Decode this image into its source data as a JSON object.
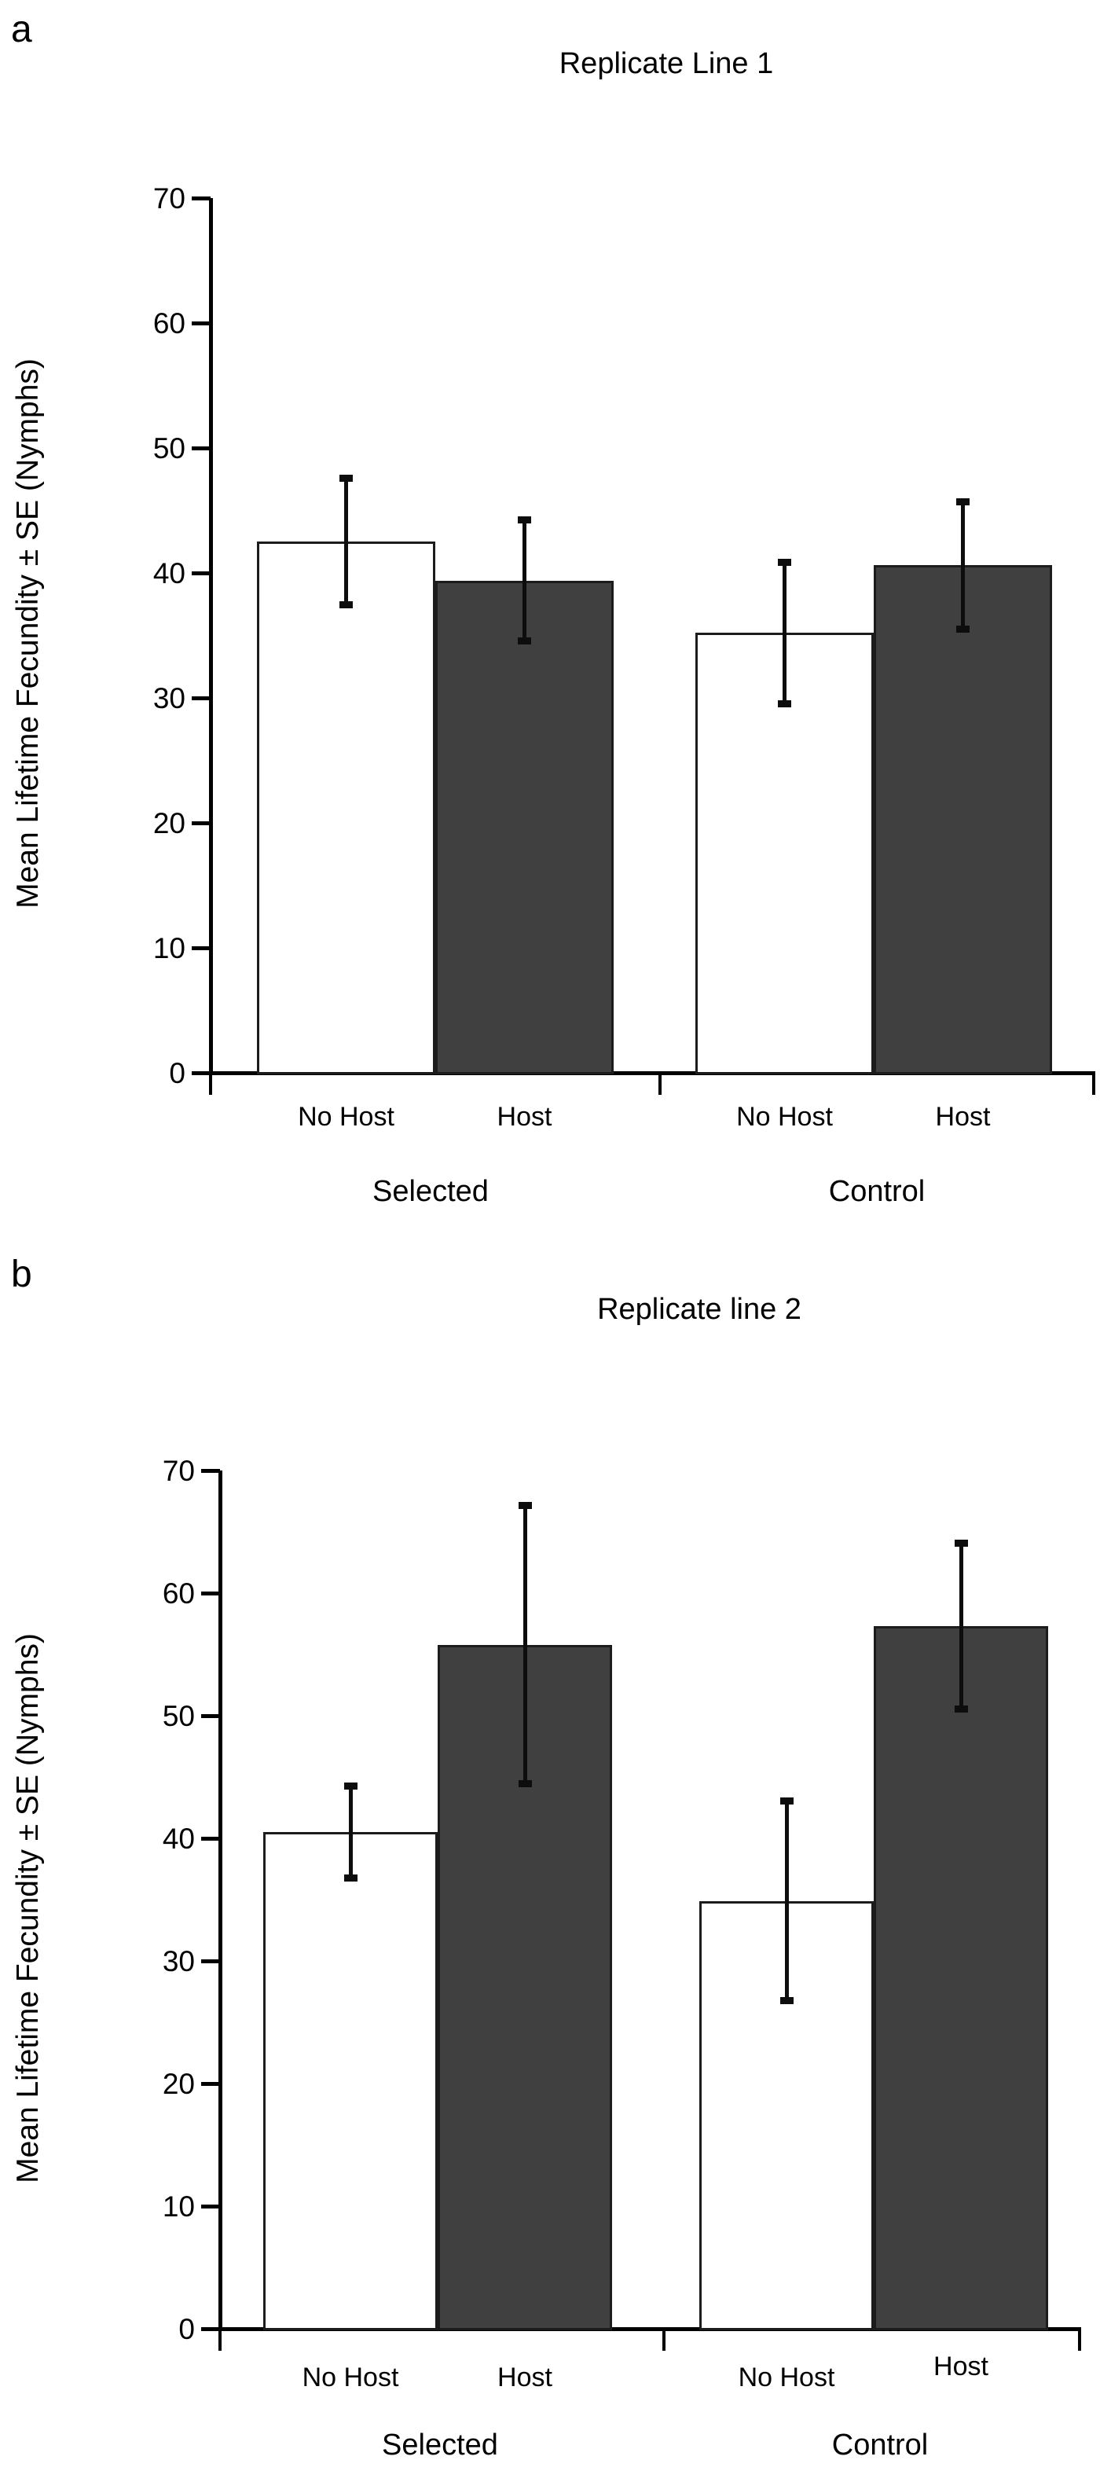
{
  "figure_title": "",
  "chart_data": [
    {
      "type": "bar",
      "panel_label": "a",
      "title": "Replicate Line 1",
      "ylabel": "Mean Lifetime Fecundity ± SE (Nymphs)",
      "xlabel": "",
      "ylim": [
        0,
        70
      ],
      "yticks": [
        0,
        10,
        20,
        30,
        40,
        50,
        60,
        70
      ],
      "group_labels": [
        "Selected",
        "Control"
      ],
      "x_tick_labels": [
        "No Host",
        "Host",
        "No Host",
        "Host"
      ],
      "categories": [
        "Selected / No Host",
        "Selected / Host",
        "Control / No Host",
        "Control / Host"
      ],
      "values": [
        42.5,
        39.4,
        35.2,
        40.6
      ],
      "se": [
        5.1,
        4.9,
        5.7,
        5.1
      ],
      "bar_fills": [
        "#ffffff",
        "#404040",
        "#ffffff",
        "#404040"
      ],
      "error_bar_style": "plus-minus SE with square caps",
      "grid": "off",
      "legend": "none"
    },
    {
      "type": "bar",
      "panel_label": "b",
      "title": "Replicate line 2",
      "ylabel": "Mean Lifetime Fecundity ± SE (Nymphs)",
      "xlabel": "",
      "ylim": [
        0,
        70
      ],
      "yticks": [
        0,
        10,
        20,
        30,
        40,
        50,
        60,
        70
      ],
      "group_labels": [
        "Selected",
        "Control"
      ],
      "x_tick_labels": [
        "No Host",
        "Host",
        "No Host",
        "Host"
      ],
      "categories": [
        "Selected / No Host",
        "Selected / Host",
        "Control / No Host",
        "Control / Host"
      ],
      "values": [
        40.5,
        55.8,
        34.9,
        57.3
      ],
      "se": [
        3.8,
        11.4,
        8.2,
        6.8
      ],
      "bar_fills": [
        "#ffffff",
        "#404040",
        "#ffffff",
        "#404040"
      ],
      "error_bar_style": "plus-minus SE with square caps",
      "grid": "off",
      "legend": "none"
    }
  ],
  "colors": {
    "filled_bar": "#404040",
    "open_bar": "#ffffff",
    "axis": "#000000",
    "background": "#ffffff"
  }
}
